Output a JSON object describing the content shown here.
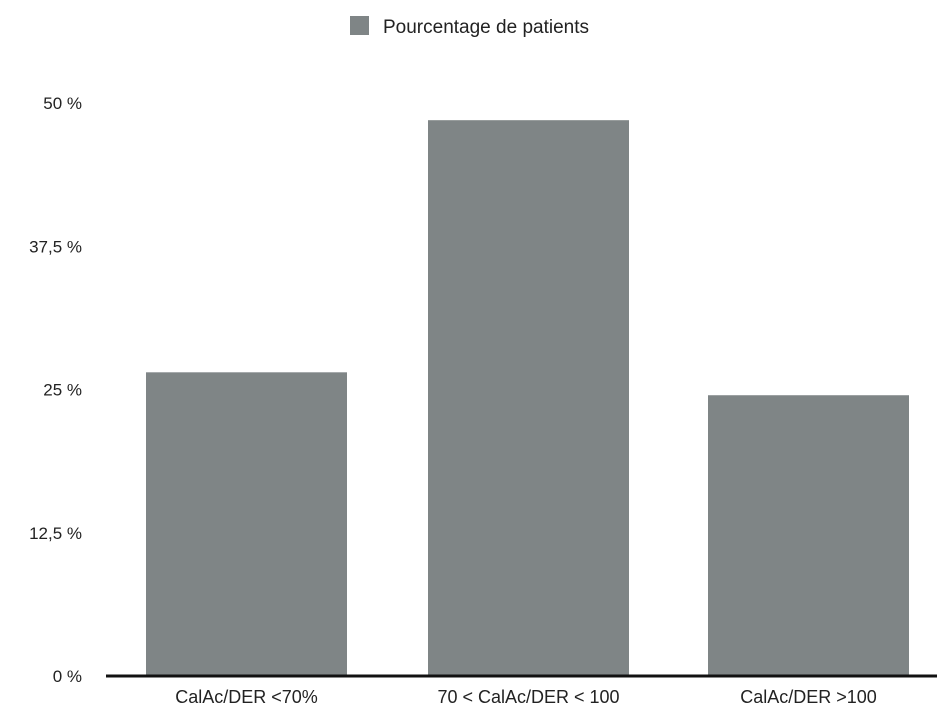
{
  "chart_data": {
    "type": "bar",
    "categories": [
      "CalAc/DER <70%",
      "70 < CalAc/DER < 100",
      "CalAc/DER >100"
    ],
    "series": [
      {
        "name": "Pourcentage de patients",
        "values": [
          26.5,
          48.5,
          24.5
        ],
        "color": "#7f8586"
      }
    ],
    "ylim": [
      0,
      50
    ],
    "yticks": [
      "0 %",
      "12,5 %",
      "25 %",
      "37,5 %",
      "50 %"
    ],
    "ytick_values": [
      0,
      12.5,
      25,
      37.5,
      50
    ],
    "grid": false,
    "legend_position": "top-center",
    "axis_color": "#111111"
  }
}
